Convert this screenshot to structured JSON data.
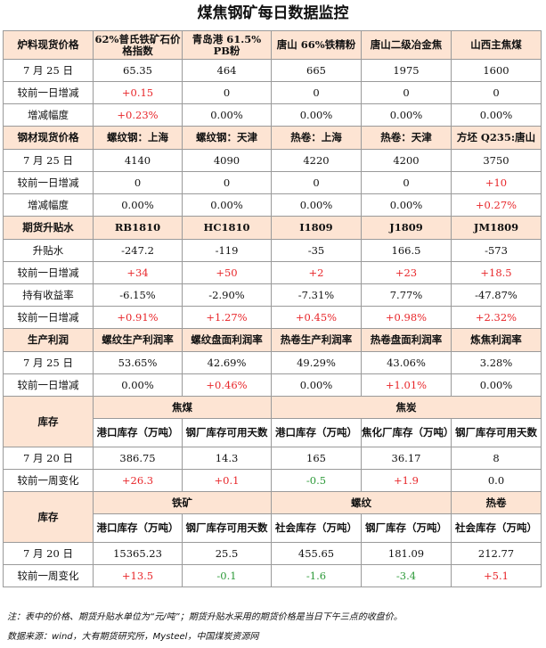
{
  "title": "煤焦钢矿每日数据监控",
  "s1": {
    "header": [
      "炉料现货价格",
      "62%普氏铁矿石价格指数",
      "青岛港 61.5% PB粉",
      "唐山 66%铁精粉",
      "唐山二级冶金焦",
      "山西主焦煤"
    ],
    "rows": [
      {
        "label": "7 月 25 日",
        "cells": [
          "65.35",
          "464",
          "665",
          "1975",
          "1600"
        ]
      },
      {
        "label": "较前一日增减",
        "cells": [
          "+0.15",
          "0",
          "0",
          "0",
          "0"
        ]
      },
      {
        "label": "增减幅度",
        "cells": [
          "+0.23%",
          "0.00%",
          "0.00%",
          "0.00%",
          "0.00%"
        ]
      }
    ]
  },
  "s2": {
    "header": [
      "钢材现货价格",
      "螺纹钢：上海",
      "螺纹钢：天津",
      "热卷：上海",
      "热卷：天津",
      "方坯 Q235:唐山"
    ],
    "rows": [
      {
        "label": "7 月 25 日",
        "cells": [
          "4140",
          "4090",
          "4220",
          "4200",
          "3750"
        ]
      },
      {
        "label": "较前一日增减",
        "cells": [
          "0",
          "0",
          "0",
          "0",
          "+10"
        ]
      },
      {
        "label": "增减幅度",
        "cells": [
          "0.00%",
          "0.00%",
          "0.00%",
          "0.00%",
          "+0.27%"
        ]
      }
    ]
  },
  "s3": {
    "header": [
      "期货升贴水",
      "RB1810",
      "HC1810",
      "I1809",
      "J1809",
      "JM1809"
    ],
    "rows": [
      {
        "label": "升贴水",
        "cells": [
          "-247.2",
          "-119",
          "-35",
          "166.5",
          "-573"
        ]
      },
      {
        "label": "较前一日增减",
        "cells": [
          "+34",
          "+50",
          "+2",
          "+23",
          "+18.5"
        ]
      },
      {
        "label": "持有收益率",
        "cells": [
          "-6.15%",
          "-2.90%",
          "-7.31%",
          "7.77%",
          "-47.87%"
        ]
      },
      {
        "label": "较前一日增减",
        "cells": [
          "+0.91%",
          "+1.27%",
          "+0.45%",
          "+0.98%",
          "+2.32%"
        ]
      }
    ]
  },
  "s4": {
    "header": [
      "生产利润",
      "螺纹生产利润率",
      "螺纹盘面利润率",
      "热卷生产利润率",
      "热卷盘面利润率",
      "炼焦利润率"
    ],
    "rows": [
      {
        "label": "7 月 25 日",
        "cells": [
          "53.65%",
          "42.69%",
          "49.29%",
          "43.06%",
          "3.28%"
        ]
      },
      {
        "label": "较前一日增减",
        "cells": [
          "0.00%",
          "+0.46%",
          "0.00%",
          "+1.01%",
          "0.00%"
        ]
      }
    ]
  },
  "s5": {
    "label": "库存",
    "cat_a": "焦煤",
    "cat_b": "焦炭",
    "sub": [
      "港口库存（万吨）",
      "钢厂库存可用天数",
      "港口库存（万吨）",
      "焦化厂库存（万吨）",
      "钢厂库存可用天数"
    ],
    "rows": [
      {
        "label": "7 月 20 日",
        "cells": [
          "386.75",
          "14.3",
          "165",
          "36.17",
          "8"
        ]
      },
      {
        "label": "较前一周变化",
        "cells": [
          "+26.3",
          "+0.1",
          "-0.5",
          "+1.9",
          "0.0"
        ]
      }
    ]
  },
  "s6": {
    "label": "库存",
    "cat_a": "铁矿",
    "cat_b": "螺纹",
    "cat_c": "热卷",
    "sub": [
      "港口库存（万吨）",
      "钢厂库存可用天数",
      "社会库存（万吨）",
      "钢厂库存（万吨）",
      "社会库存（万吨）"
    ],
    "rows": [
      {
        "label": "7 月 20 日",
        "cells": [
          "15365.23",
          "25.5",
          "455.65",
          "181.09",
          "212.77"
        ]
      },
      {
        "label": "较前一周变化",
        "cells": [
          "+13.5",
          "-0.1",
          "-1.6",
          "-3.4",
          "+5.1"
        ]
      }
    ]
  },
  "note": "注：表中的价格、期货升贴水单位为“元/吨”；期货升贴水采用的期货价格是当日下午三点的收盘价。",
  "source": "数据来源：wind，大有期货研究所，Mysteel，中国煤炭资源网",
  "colors": {
    "header_bg": "#fde4d3",
    "up": "#e8262a",
    "down": "#2e9a3a",
    "border": "#9a9a9a"
  }
}
